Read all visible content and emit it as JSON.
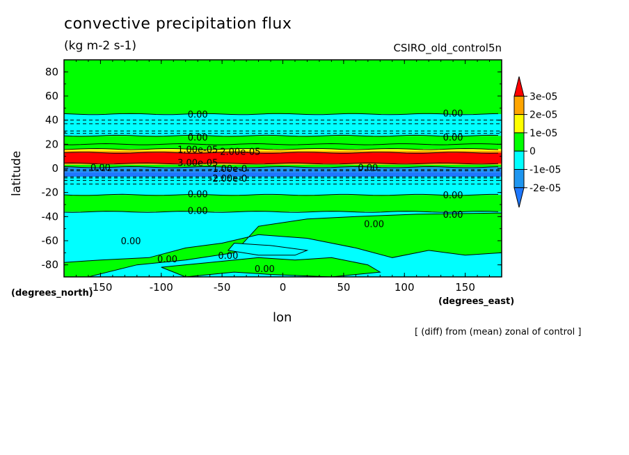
{
  "title": "convective precipitation flux",
  "units": "(kg m-2 s-1)",
  "dataset": "CSIRO_old_control5n",
  "footnote": "[ (diff) from (mean) zonal of control ]",
  "chart_data": {
    "type": "heatmap",
    "xlabel": "lon",
    "ylabel": "latitude",
    "x_units_label": "(degrees_east)",
    "y_units_label": "(degrees_north)",
    "xlim": [
      -180,
      180
    ],
    "ylim": [
      -90,
      90
    ],
    "xticks": [
      -150,
      -100,
      -50,
      0,
      50,
      100,
      150
    ],
    "yticks": [
      80,
      60,
      40,
      20,
      0,
      -20,
      -40,
      -60,
      -80
    ],
    "xtick_labels": [
      "-150",
      "-100",
      "-50",
      "0",
      "50",
      "100",
      "150"
    ],
    "ytick_labels": [
      "80",
      "60",
      "40",
      "20",
      "0",
      "-20",
      "-40",
      "-60",
      "-80"
    ],
    "colorbar": {
      "ticks": [
        "3e-05",
        "2e-05",
        "1e-05",
        "0",
        "-1e-05",
        "-2e-05"
      ],
      "levels": [
        {
          "min": -3e-05,
          "max": -2e-05,
          "color": "#1e78ff"
        },
        {
          "min": -2e-05,
          "max": -1e-05,
          "color": "#1e96f0"
        },
        {
          "min": -1e-05,
          "max": 0,
          "color": "#00ffff"
        },
        {
          "min": 0,
          "max": 1e-05,
          "color": "#00ff00"
        },
        {
          "min": 1e-05,
          "max": 2e-05,
          "color": "#ffff00"
        },
        {
          "min": 2e-05,
          "max": 3e-05,
          "color": "#ffa500"
        },
        {
          "min": 3e-05,
          "max": 4e-05,
          "color": "#ff0000"
        }
      ]
    },
    "zonal_bands": [
      {
        "lat_from": 90,
        "lat_to": 45,
        "color": "#00ff00"
      },
      {
        "lat_from": 45,
        "lat_to": 27,
        "color": "#00ffff"
      },
      {
        "lat_from": 27,
        "lat_to": 16,
        "color": "#00ff00"
      },
      {
        "lat_from": 16,
        "lat_to": 14.5,
        "color": "#ffff00"
      },
      {
        "lat_from": 14.5,
        "lat_to": 13,
        "color": "#ffa500"
      },
      {
        "lat_from": 13,
        "lat_to": 4,
        "color": "#ff0000"
      },
      {
        "lat_from": 4,
        "lat_to": 3,
        "color": "#ffa500"
      },
      {
        "lat_from": 3,
        "lat_to": 1,
        "color": "#00ff00"
      },
      {
        "lat_from": 1,
        "lat_to": -3,
        "color": "#1e96f0"
      },
      {
        "lat_from": -3,
        "lat_to": -7,
        "color": "#1e78ff"
      },
      {
        "lat_from": -7,
        "lat_to": -22,
        "color": "#00ffff"
      },
      {
        "lat_from": -22,
        "lat_to": -36,
        "color": "#00ff00"
      },
      {
        "lat_from": -36,
        "lat_to": -90,
        "color": "#00ffff"
      }
    ],
    "patches": [
      {
        "color": "#00ff00",
        "points": [
          [
            -20,
            -48
          ],
          [
            20,
            -42
          ],
          [
            60,
            -40
          ],
          [
            110,
            -38
          ],
          [
            180,
            -37
          ],
          [
            180,
            -70
          ],
          [
            150,
            -72
          ],
          [
            120,
            -68
          ],
          [
            90,
            -74
          ],
          [
            60,
            -66
          ],
          [
            20,
            -58
          ],
          [
            -20,
            -55
          ],
          [
            -50,
            -62
          ],
          [
            -80,
            -66
          ],
          [
            -110,
            -74
          ],
          [
            -150,
            -76
          ],
          [
            -180,
            -78
          ],
          [
            -180,
            -90
          ],
          [
            -160,
            -90
          ],
          [
            -120,
            -80
          ],
          [
            -80,
            -76
          ],
          [
            -40,
            -70
          ]
        ]
      },
      {
        "color": "#00ff00",
        "points": [
          [
            -100,
            -82
          ],
          [
            -60,
            -78
          ],
          [
            -20,
            -74
          ],
          [
            10,
            -76
          ],
          [
            40,
            -74
          ],
          [
            70,
            -80
          ],
          [
            80,
            -86
          ],
          [
            40,
            -90
          ],
          [
            -10,
            -88
          ],
          [
            -40,
            -86
          ],
          [
            -80,
            -90
          ]
        ]
      },
      {
        "color": "#00ffff",
        "points": [
          [
            -40,
            -62
          ],
          [
            -10,
            -64
          ],
          [
            20,
            -68
          ],
          [
            10,
            -72
          ],
          [
            -20,
            -72
          ],
          [
            -45,
            -68
          ]
        ]
      }
    ],
    "contour_labels": [
      {
        "text": "0.00",
        "lon": -70,
        "lat": 45
      },
      {
        "text": "0.00",
        "lon": 140,
        "lat": 46
      },
      {
        "text": "0.00",
        "lon": -70,
        "lat": 26
      },
      {
        "text": "0.00",
        "lon": 140,
        "lat": 26
      },
      {
        "text": "1.00e-05",
        "lon": -70,
        "lat": 16
      },
      {
        "text": "2.00e-05",
        "lon": -35,
        "lat": 14
      },
      {
        "text": "3.00e-05",
        "lon": -70,
        "lat": 5
      },
      {
        "text": "-1.00e-0",
        "lon": -45,
        "lat": 0
      },
      {
        "text": "-2.00e-0",
        "lon": -45,
        "lat": -8
      },
      {
        "text": "0.00",
        "lon": -150,
        "lat": 1
      },
      {
        "text": "0.00",
        "lon": 70,
        "lat": 1
      },
      {
        "text": "0.00",
        "lon": -70,
        "lat": -21
      },
      {
        "text": "0.00",
        "lon": 140,
        "lat": -22
      },
      {
        "text": "0.00",
        "lon": -70,
        "lat": -35
      },
      {
        "text": "0.00",
        "lon": 140,
        "lat": -38
      },
      {
        "text": "0.00",
        "lon": 75,
        "lat": -46
      },
      {
        "text": "0.00",
        "lon": -125,
        "lat": -60
      },
      {
        "text": "0.00",
        "lon": -95,
        "lat": -75
      },
      {
        "text": "0.00",
        "lon": -45,
        "lat": -72
      },
      {
        "text": "0.00",
        "lon": -15,
        "lat": -83
      }
    ],
    "solid_contour_lats": [
      45,
      27,
      20,
      16,
      13,
      4,
      1,
      -22,
      -36
    ],
    "dashed_contour_lats": [
      40,
      37,
      31,
      29,
      -1,
      -2,
      -7,
      -8,
      -10,
      -13
    ]
  }
}
